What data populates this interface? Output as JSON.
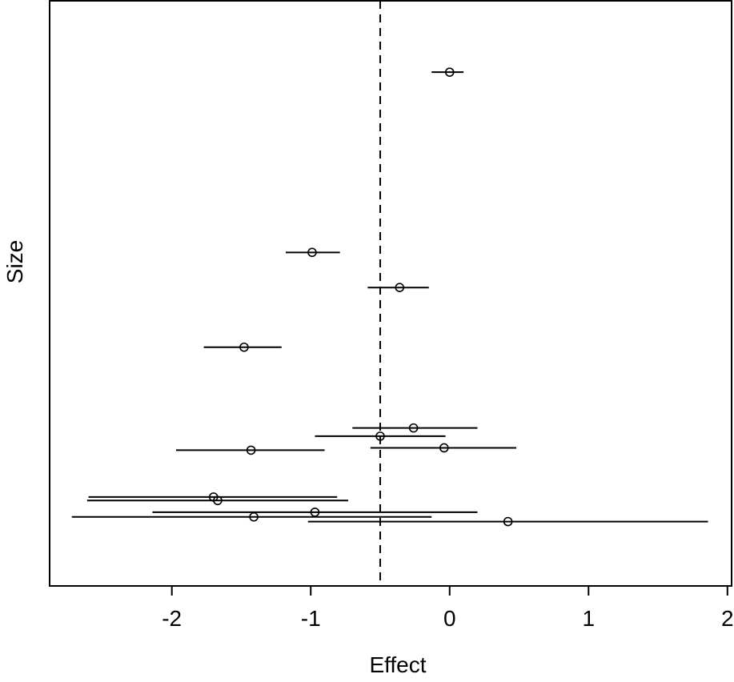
{
  "chart_data": {
    "type": "scatter",
    "subtype": "forest-plot",
    "title": "",
    "xlabel": "Effect",
    "ylabel": "Size",
    "xlim": [
      -2.88,
      2.03
    ],
    "ylim": [
      0,
      1
    ],
    "y_ticks_shown": false,
    "grid": false,
    "legend": "none",
    "x_ticks": [
      -2,
      -1,
      0,
      1,
      2
    ],
    "x_tick_labels": [
      "-2",
      "-1",
      "0",
      "1",
      "2"
    ],
    "reference_line": {
      "x": -0.5,
      "style": "dashed"
    },
    "points": [
      {
        "effect": 0.0,
        "lower": -0.13,
        "upper": 0.1,
        "size": 0.878
      },
      {
        "effect": -0.99,
        "lower": -1.18,
        "upper": -0.79,
        "size": 0.57
      },
      {
        "effect": -0.36,
        "lower": -0.59,
        "upper": -0.15,
        "size": 0.51
      },
      {
        "effect": -1.48,
        "lower": -1.77,
        "upper": -1.21,
        "size": 0.408
      },
      {
        "effect": -0.26,
        "lower": -0.7,
        "upper": 0.2,
        "size": 0.27
      },
      {
        "effect": -0.5,
        "lower": -0.97,
        "upper": -0.03,
        "size": 0.256
      },
      {
        "effect": -0.04,
        "lower": -0.57,
        "upper": 0.48,
        "size": 0.236
      },
      {
        "effect": -1.43,
        "lower": -1.97,
        "upper": -0.9,
        "size": 0.232
      },
      {
        "effect": -1.7,
        "lower": -2.6,
        "upper": -0.81,
        "size": 0.152
      },
      {
        "effect": -1.67,
        "lower": -2.61,
        "upper": -0.73,
        "size": 0.146
      },
      {
        "effect": -0.97,
        "lower": -2.14,
        "upper": 0.2,
        "size": 0.126
      },
      {
        "effect": -1.41,
        "lower": -2.72,
        "upper": -0.13,
        "size": 0.118
      },
      {
        "effect": 0.42,
        "lower": -1.02,
        "upper": 1.86,
        "size": 0.11
      }
    ]
  }
}
